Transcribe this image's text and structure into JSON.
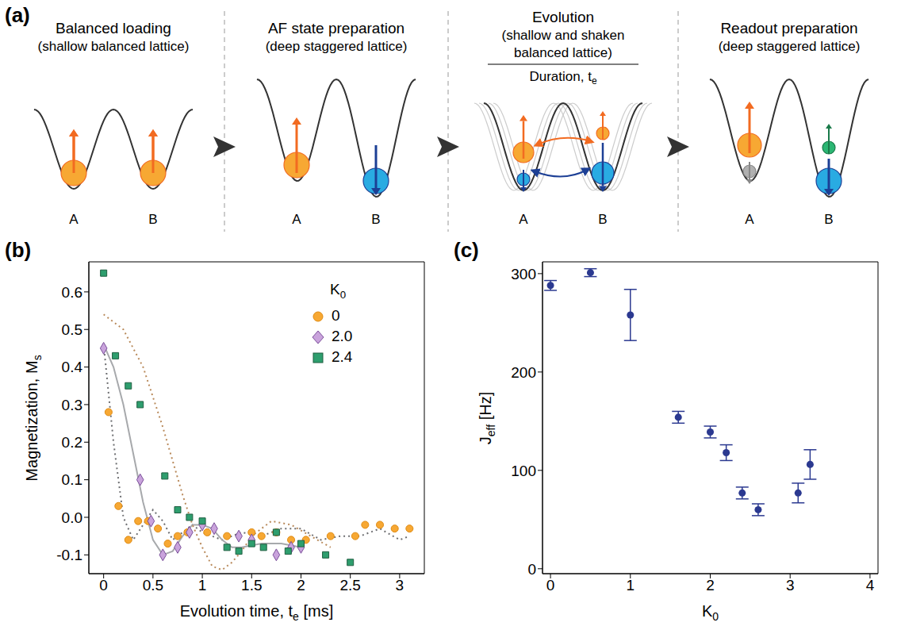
{
  "diagram": {
    "label": "(a)",
    "sites": [
      "A",
      "B"
    ],
    "stages": [
      {
        "title": "Balanced loading",
        "subtitle": [
          "(shallow balanced lattice)"
        ]
      },
      {
        "title": "AF state preparation",
        "subtitle": [
          "(deep staggered lattice)"
        ]
      },
      {
        "title": "Evolution",
        "subtitle": [
          "(shallow and shaken",
          "balanced lattice)"
        ],
        "duration": {
          "main": "Duration, t",
          "sub": "e"
        }
      },
      {
        "title": "Readout preparation",
        "subtitle": [
          "(deep staggered lattice)"
        ]
      }
    ]
  },
  "chart_data": [
    {
      "label": "(b)",
      "type": "scatter",
      "x_label": {
        "main": "Evolution time, t",
        "sub": "e",
        "tail": " [ms]"
      },
      "y_label": {
        "main": "Magnetization, M",
        "sub": "s"
      },
      "xlim": [
        -0.15,
        3.25
      ],
      "xticks": [
        0,
        0.5,
        1,
        1.5,
        2,
        2.5,
        3
      ],
      "ylim": [
        -0.15,
        0.68
      ],
      "yticks": [
        -0.1,
        {
          "value": 0,
          "label": "0.0"
        },
        0.1,
        0.2,
        0.3,
        0.4,
        0.5,
        0.6
      ],
      "legend": "upper right",
      "legend_title": {
        "main": "K",
        "sub": "0"
      },
      "series": [
        {
          "type": "line",
          "color": "#6d6e71",
          "line_style": "dotted",
          "x": [
            0,
            0.1,
            0.2,
            0.3,
            0.4,
            0.5,
            0.6,
            0.7,
            0.8,
            0.9,
            1.0,
            1.2,
            1.4,
            1.6,
            1.8,
            2.0,
            2.2,
            2.4,
            2.6,
            2.8,
            3.0,
            3.1
          ],
          "values": [
            0.46,
            0.2,
            0.0,
            -0.06,
            -0.02,
            0.02,
            -0.01,
            -0.06,
            -0.04,
            -0.02,
            -0.04,
            -0.06,
            -0.04,
            -0.05,
            -0.03,
            -0.03,
            -0.06,
            -0.05,
            -0.05,
            -0.03,
            -0.06,
            -0.05
          ]
        },
        {
          "type": "line",
          "color": "#a7a9ac",
          "line_style": "solid",
          "x": [
            0,
            0.1,
            0.2,
            0.3,
            0.4,
            0.5,
            0.6,
            0.7,
            0.8,
            0.9,
            1.0,
            1.1,
            1.2,
            1.3,
            1.4,
            1.6,
            1.8,
            2.0
          ],
          "values": [
            0.46,
            0.4,
            0.3,
            0.17,
            0.04,
            -0.06,
            -0.1,
            -0.09,
            -0.05,
            -0.02,
            -0.02,
            -0.03,
            -0.06,
            -0.08,
            -0.08,
            -0.07,
            -0.07,
            -0.08
          ]
        },
        {
          "type": "line",
          "color": "#b98a5b",
          "line_style": "dotted",
          "x": [
            0,
            0.2,
            0.4,
            0.6,
            0.7,
            0.8,
            0.9,
            1.0,
            1.1,
            1.2,
            1.3,
            1.4,
            1.5,
            1.7,
            1.9,
            2.1,
            2.3
          ],
          "values": [
            0.54,
            0.5,
            0.4,
            0.24,
            0.15,
            0.06,
            -0.02,
            -0.08,
            -0.13,
            -0.14,
            -0.12,
            -0.09,
            -0.05,
            -0.01,
            -0.02,
            -0.05,
            -0.08
          ]
        },
        {
          "type": "scatter",
          "name": "0",
          "color": "#f7a833",
          "marker": "circle",
          "x": [
            0.05,
            0.15,
            0.25,
            0.35,
            0.45,
            0.55,
            0.65,
            0.75,
            0.85,
            1.05,
            1.25,
            1.5,
            1.6,
            1.75,
            1.9,
            2.05,
            2.3,
            2.55,
            2.65,
            2.8,
            2.95,
            3.1
          ],
          "values": [
            0.28,
            0.03,
            -0.06,
            -0.01,
            -0.01,
            -0.03,
            -0.07,
            -0.05,
            -0.04,
            -0.04,
            -0.05,
            -0.04,
            -0.05,
            -0.04,
            -0.06,
            -0.06,
            -0.05,
            -0.05,
            -0.02,
            -0.02,
            -0.03,
            -0.03
          ]
        },
        {
          "type": "scatter",
          "name": "2.0",
          "color": "#c9a3dc",
          "marker": "diamond",
          "x": [
            0,
            0.37,
            0.48,
            0.6,
            0.75,
            0.87,
            1.0,
            1.12,
            1.37,
            1.5,
            1.75,
            1.9,
            2.0
          ],
          "values": [
            0.45,
            0.1,
            -0.01,
            -0.1,
            -0.08,
            -0.04,
            -0.02,
            -0.03,
            -0.05,
            -0.06,
            -0.1,
            -0.08,
            -0.08
          ]
        },
        {
          "type": "scatter",
          "name": "2.4",
          "color": "#2e9e6e",
          "marker": "square",
          "x": [
            0,
            0.12,
            0.25,
            0.37,
            0.62,
            0.75,
            0.87,
            1.0,
            1.25,
            1.37,
            1.5,
            1.62,
            1.75,
            1.87,
            2.0,
            2.25,
            2.5
          ],
          "values": [
            0.65,
            0.43,
            0.35,
            0.3,
            0.11,
            0.02,
            0.0,
            -0.01,
            -0.08,
            -0.09,
            -0.07,
            -0.08,
            -0.04,
            -0.09,
            -0.07,
            -0.1,
            -0.12
          ]
        }
      ]
    },
    {
      "label": "(c)",
      "type": "scatter",
      "x_label": {
        "main": "K",
        "sub": "0"
      },
      "y_label": {
        "main": "J",
        "sub": "eff",
        "tail": " [Hz]"
      },
      "xlim": [
        -0.1,
        4.1
      ],
      "xticks": [
        0,
        1,
        2,
        3,
        4
      ],
      "ylim": [
        -5,
        312
      ],
      "yticks": [
        0,
        100,
        200,
        300
      ],
      "color": "#2b3990",
      "marker": "circle",
      "x": [
        0,
        0.5,
        1.0,
        1.6,
        2.0,
        2.2,
        2.4,
        2.6,
        3.1,
        3.25
      ],
      "values": [
        288,
        301,
        258,
        154,
        139,
        118,
        77,
        60,
        77,
        106
      ],
      "errors": [
        5,
        4,
        26,
        6,
        6,
        8,
        6,
        6,
        10,
        15
      ]
    }
  ]
}
